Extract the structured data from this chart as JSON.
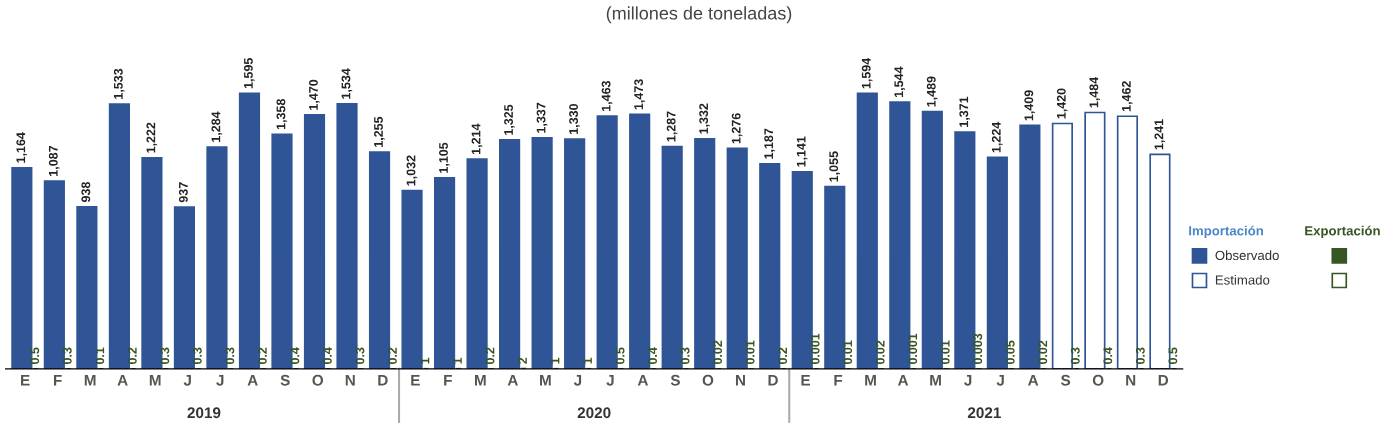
{
  "chart_data": {
    "type": "bar",
    "title": "(millones de toneladas)",
    "categories": [
      "E",
      "F",
      "M",
      "A",
      "M",
      "J",
      "J",
      "A",
      "S",
      "O",
      "N",
      "D",
      "E",
      "F",
      "M",
      "A",
      "M",
      "J",
      "J",
      "A",
      "S",
      "O",
      "N",
      "D",
      "E",
      "F",
      "M",
      "A",
      "M",
      "J",
      "J",
      "A",
      "S",
      "O",
      "N",
      "D"
    ],
    "series": [
      {
        "name": "Observado",
        "color": "#2f5597",
        "values": [
          1164,
          1087,
          938,
          1533,
          1222,
          937,
          1284,
          1595,
          1358,
          1470,
          1534,
          1255,
          1032,
          1105,
          1214,
          1325,
          1337,
          1330,
          1463,
          1473,
          1287,
          1332,
          1276,
          1187,
          1141,
          1055,
          1594,
          1544,
          1489,
          1371,
          1224,
          1409,
          null,
          null,
          null,
          null
        ],
        "value_labels": [
          "1,164",
          "1,087",
          "938",
          "1,533",
          "1,222",
          "937",
          "1,284",
          "1,595",
          "1,358",
          "1,470",
          "1,534",
          "1,255",
          "1,032",
          "1,105",
          "1,214",
          "1,325",
          "1,337",
          "1,330",
          "1,463",
          "1,473",
          "1,287",
          "1,332",
          "1,276",
          "1,187",
          "1,141",
          "1,055",
          "1,594",
          "1,544",
          "1,489",
          "1,371",
          "1,224",
          "1,409",
          null,
          null,
          null,
          null
        ]
      },
      {
        "name": "Estimado",
        "color": "#2f5597",
        "values": [
          null,
          null,
          null,
          null,
          null,
          null,
          null,
          null,
          null,
          null,
          null,
          null,
          null,
          null,
          null,
          null,
          null,
          null,
          null,
          null,
          null,
          null,
          null,
          null,
          null,
          null,
          null,
          null,
          null,
          null,
          null,
          null,
          1420,
          1484,
          1462,
          1241
        ],
        "value_labels": [
          null,
          null,
          null,
          null,
          null,
          null,
          null,
          null,
          null,
          null,
          null,
          null,
          null,
          null,
          null,
          null,
          null,
          null,
          null,
          null,
          null,
          null,
          null,
          null,
          null,
          null,
          null,
          null,
          null,
          null,
          null,
          null,
          "1,420",
          "1,484",
          "1,462",
          "1,241"
        ]
      },
      {
        "color": "#375623",
        "values": [
          0.5,
          0.3,
          0.1,
          0.2,
          0.3,
          0.3,
          0.3,
          0.2,
          0.4,
          0.4,
          0.3,
          0.2,
          1,
          1,
          0.2,
          2,
          1,
          1,
          0.5,
          0.4,
          0.3,
          0.02,
          0.01,
          0.2,
          0.001,
          0.01,
          0.02,
          0.001,
          0.01,
          0.003,
          0.05,
          0.02,
          null,
          null,
          null,
          null
        ],
        "value_labels": [
          "0.5",
          "0.3",
          "0.1",
          "0.2",
          "0.3",
          "0.3",
          "0.3",
          "0.2",
          "0.4",
          "0.4",
          "0.3",
          "0.2",
          "1",
          "1",
          "0.2",
          "2",
          "1",
          "1",
          "0.5",
          "0.4",
          "0.3",
          "0.02",
          "0.01",
          "0.2",
          "0.001",
          "0.01",
          "0.02",
          "0.001",
          "0.01",
          "0.003",
          "0.05",
          "0.02",
          null,
          null,
          null,
          null
        ]
      },
      {
        "color": "#375623",
        "values": [
          null,
          null,
          null,
          null,
          null,
          null,
          null,
          null,
          null,
          null,
          null,
          null,
          null,
          null,
          null,
          null,
          null,
          null,
          null,
          null,
          null,
          null,
          null,
          null,
          null,
          null,
          null,
          null,
          null,
          null,
          null,
          null,
          0.3,
          0.4,
          0.3,
          0.5
        ],
        "value_labels": [
          null,
          null,
          null,
          null,
          null,
          null,
          null,
          null,
          null,
          null,
          null,
          null,
          null,
          null,
          null,
          null,
          null,
          null,
          null,
          null,
          null,
          null,
          null,
          null,
          null,
          null,
          null,
          null,
          null,
          null,
          null,
          null,
          "0.3",
          "0.4",
          "0.3",
          "0.5"
        ]
      }
    ],
    "annotations": [
      "2019",
      "2020",
      "2021",
      "Importación",
      "Exportación"
    ],
    "legend": "right",
    "grid": false
  }
}
